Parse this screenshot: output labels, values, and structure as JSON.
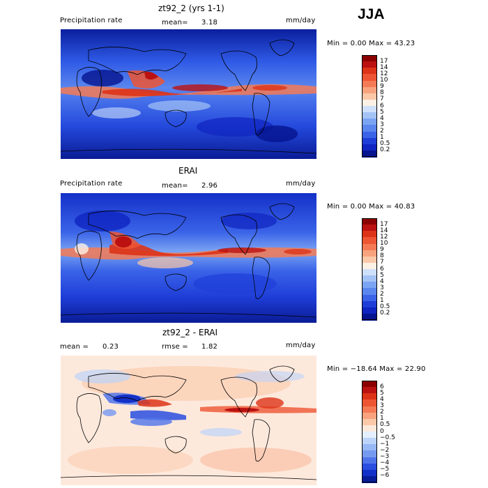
{
  "season": "JJA",
  "panels": [
    {
      "title": "zt92_2 (yrs 1-1)",
      "left_label": "Precipitation rate",
      "middle_label": "mean=",
      "middle_value": "3.18",
      "units": "mm/day",
      "minmax_label": "Min =    0.00 Max =  43.23",
      "min": 0.0,
      "max": 43.23
    },
    {
      "title": "ERAI",
      "left_label": "Precipitation rate",
      "middle_label": "mean=",
      "middle_value": "2.96",
      "units": "mm/day",
      "minmax_label": "Min =    0.00 Max =  40.83",
      "min": 0.0,
      "max": 40.83
    },
    {
      "title": "zt92_2 - ERAI",
      "left_label": "mean =",
      "left_value": "0.23",
      "middle_label": "rmse =",
      "middle_value": "1.82",
      "units": "mm/day",
      "minmax_label": "Min = −18.64 Max =  22.90",
      "min": -18.64,
      "max": 22.9
    }
  ],
  "precip_colorbar": {
    "labels": [
      "17",
      "14",
      "12",
      "10",
      "9",
      "8",
      "7",
      "6",
      "5",
      "4",
      "3",
      "2",
      "1",
      "0.5",
      "0.2"
    ],
    "colors": [
      "#8b0000",
      "#bb1111",
      "#dd3318",
      "#ee5533",
      "#f47a55",
      "#f8a37e",
      "#fbc8a8",
      "#fdf0e4",
      "#cfe0fa",
      "#a4c3f5",
      "#7ba4f2",
      "#5a86ee",
      "#3a63e8",
      "#1f3ed8",
      "#0f24c0",
      "#05148f"
    ]
  },
  "diff_colorbar": {
    "labels": [
      "6",
      "5",
      "4",
      "3",
      "2",
      "1",
      "0.5",
      "0",
      "−0.5",
      "−1",
      "−2",
      "−3",
      "−4",
      "−5",
      "−6"
    ],
    "colors": [
      "#8b0000",
      "#bb1111",
      "#dd3318",
      "#ee5533",
      "#f47a55",
      "#f8a37e",
      "#fbc8a8",
      "#fde9dc",
      "#e4efff",
      "#bcd3fa",
      "#98b8f5",
      "#7699f0",
      "#4f74ea",
      "#2a4ee0",
      "#1330c8",
      "#071c99"
    ]
  }
}
